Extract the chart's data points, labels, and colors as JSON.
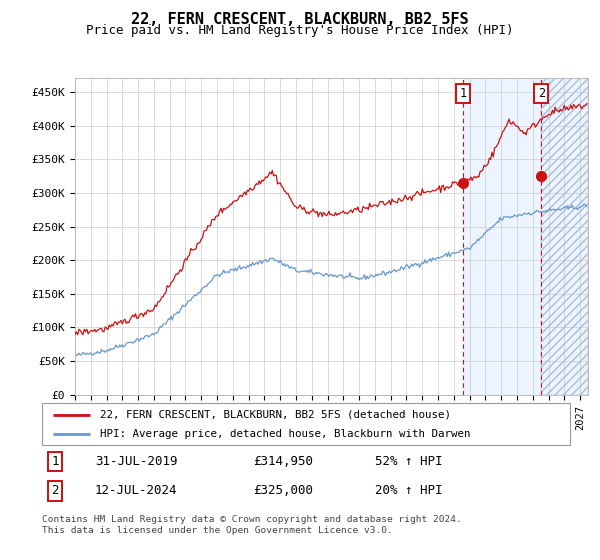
{
  "title": "22, FERN CRESCENT, BLACKBURN, BB2 5FS",
  "subtitle": "Price paid vs. HM Land Registry's House Price Index (HPI)",
  "ylabel_ticks": [
    "£0",
    "£50K",
    "£100K",
    "£150K",
    "£200K",
    "£250K",
    "£300K",
    "£350K",
    "£400K",
    "£450K"
  ],
  "ytick_values": [
    0,
    50000,
    100000,
    150000,
    200000,
    250000,
    300000,
    350000,
    400000,
    450000
  ],
  "ylim": [
    0,
    470000
  ],
  "xlim_start": 1995.0,
  "xlim_end": 2027.5,
  "hpi_color": "#6699cc",
  "price_color": "#cc1111",
  "marker1_x": 2019.58,
  "marker1_y": 314950,
  "marker2_x": 2024.54,
  "marker2_y": 325000,
  "marker1_label": "31-JUL-2019",
  "marker2_label": "12-JUL-2024",
  "marker1_price": "£314,950",
  "marker2_price": "£325,000",
  "marker1_pct": "52% ↑ HPI",
  "marker2_pct": "20% ↑ HPI",
  "legend_line1": "22, FERN CRESCENT, BLACKBURN, BB2 5FS (detached house)",
  "legend_line2": "HPI: Average price, detached house, Blackburn with Darwen",
  "footnote": "Contains HM Land Registry data © Crown copyright and database right 2024.\nThis data is licensed under the Open Government Licence v3.0.",
  "background_shade_start": 2019.58,
  "hatch_start": 2024.54
}
